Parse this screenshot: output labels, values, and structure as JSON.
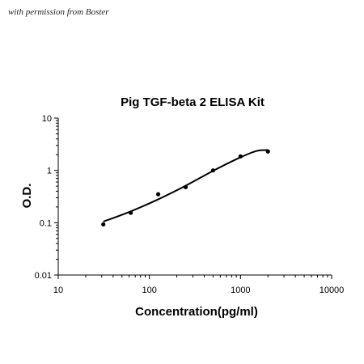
{
  "watermark": "with permission from Boster",
  "chart_data": {
    "type": "scatter",
    "title": "Pig TGF-beta 2 ELISA Kit",
    "xlabel": "Concentration(pg/ml)",
    "ylabel": "O.D.",
    "x_scale": "log",
    "y_scale": "log",
    "xlim": [
      10,
      10000
    ],
    "ylim": [
      0.01,
      10
    ],
    "x_ticks": [
      "10",
      "100",
      "1000",
      "10000"
    ],
    "y_ticks": [
      "0.01",
      "0.1",
      "1",
      "10"
    ],
    "grid": false,
    "legend": "none",
    "series": [
      {
        "points": [
          {
            "x": 31.25,
            "y": 0.093
          },
          {
            "x": 62.5,
            "y": 0.155
          },
          {
            "x": 125,
            "y": 0.35
          },
          {
            "x": 250,
            "y": 0.48
          },
          {
            "x": 500,
            "y": 1.0
          },
          {
            "x": 1000,
            "y": 1.85
          },
          {
            "x": 2000,
            "y": 2.3
          }
        ],
        "fit_curve": [
          {
            "x": 31.25,
            "y": 0.105
          },
          {
            "x": 62.5,
            "y": 0.165
          },
          {
            "x": 125,
            "y": 0.28
          },
          {
            "x": 250,
            "y": 0.51
          },
          {
            "x": 500,
            "y": 0.98
          },
          {
            "x": 1000,
            "y": 1.78
          },
          {
            "x": 1500,
            "y": 2.35
          },
          {
            "x": 2000,
            "y": 2.45
          }
        ]
      }
    ],
    "colors": {
      "marker": "#000000",
      "line": "#000000",
      "axis": "#000000"
    }
  }
}
